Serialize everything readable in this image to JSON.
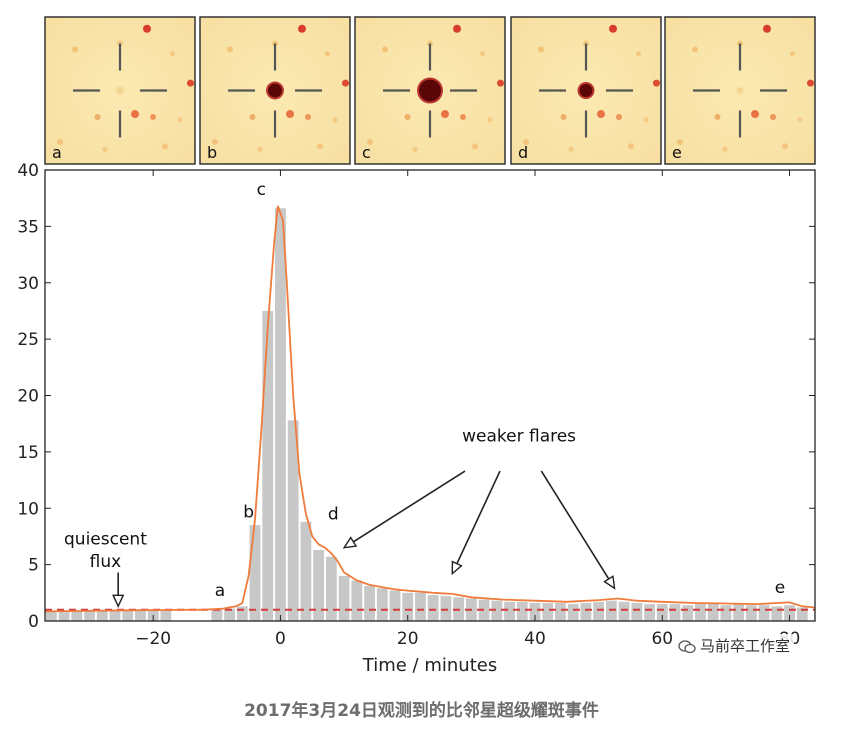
{
  "caption": "2017年3月24日观测到的比邻星超级耀斑事件",
  "watermark": "马前卒工作室",
  "panels": [
    {
      "label": "a",
      "brightness": 0.15
    },
    {
      "label": "b",
      "brightness": 0.55
    },
    {
      "label": "c",
      "brightness": 1.0
    },
    {
      "label": "d",
      "brightness": 0.5
    },
    {
      "label": "e",
      "brightness": 0.12
    }
  ],
  "chart_data": {
    "type": "bar",
    "title": "",
    "xlabel": "Time / minutes",
    "ylabel": "",
    "xlim": [
      -37,
      84
    ],
    "ylim": [
      0,
      40
    ],
    "xticks": [
      -20,
      0,
      20,
      40,
      60,
      80
    ],
    "xtick_labels": [
      "−20",
      "0",
      "20",
      "40",
      "60",
      "80"
    ],
    "yticks": [
      0,
      5,
      10,
      15,
      20,
      25,
      30,
      35,
      40
    ],
    "grid": false,
    "quiescent_level": 1.0,
    "bars": [
      {
        "x": -36,
        "v": 0.9
      },
      {
        "x": -34,
        "v": 0.9
      },
      {
        "x": -32,
        "v": 0.9
      },
      {
        "x": -30,
        "v": 1.0
      },
      {
        "x": -28,
        "v": 0.9
      },
      {
        "x": -26,
        "v": 1.0
      },
      {
        "x": -24,
        "v": 0.9
      },
      {
        "x": -22,
        "v": 1.0
      },
      {
        "x": -20,
        "v": 1.0
      },
      {
        "x": -18,
        "v": 0.9
      },
      {
        "x": -10,
        "v": 1.0
      },
      {
        "x": -8,
        "v": 1.1
      },
      {
        "x": -6,
        "v": 1.3
      },
      {
        "x": -4,
        "v": 8.5
      },
      {
        "x": -2,
        "v": 27.5
      },
      {
        "x": 0,
        "v": 36.6
      },
      {
        "x": 2,
        "v": 17.8
      },
      {
        "x": 4,
        "v": 8.8
      },
      {
        "x": 6,
        "v": 6.3
      },
      {
        "x": 8,
        "v": 5.7
      },
      {
        "x": 10,
        "v": 4.0
      },
      {
        "x": 12,
        "v": 3.6
      },
      {
        "x": 14,
        "v": 3.1
      },
      {
        "x": 16,
        "v": 2.9
      },
      {
        "x": 18,
        "v": 2.7
      },
      {
        "x": 20,
        "v": 2.5
      },
      {
        "x": 22,
        "v": 2.5
      },
      {
        "x": 24,
        "v": 2.3
      },
      {
        "x": 26,
        "v": 2.2
      },
      {
        "x": 28,
        "v": 2.1
      },
      {
        "x": 30,
        "v": 2.0
      },
      {
        "x": 32,
        "v": 1.9
      },
      {
        "x": 34,
        "v": 1.8
      },
      {
        "x": 36,
        "v": 1.7
      },
      {
        "x": 38,
        "v": 1.7
      },
      {
        "x": 40,
        "v": 1.6
      },
      {
        "x": 42,
        "v": 1.6
      },
      {
        "x": 44,
        "v": 1.6
      },
      {
        "x": 46,
        "v": 1.5
      },
      {
        "x": 48,
        "v": 1.6
      },
      {
        "x": 50,
        "v": 1.7
      },
      {
        "x": 52,
        "v": 1.8
      },
      {
        "x": 54,
        "v": 1.7
      },
      {
        "x": 56,
        "v": 1.6
      },
      {
        "x": 58,
        "v": 1.5
      },
      {
        "x": 60,
        "v": 1.5
      },
      {
        "x": 62,
        "v": 1.5
      },
      {
        "x": 64,
        "v": 1.4
      },
      {
        "x": 66,
        "v": 1.5
      },
      {
        "x": 68,
        "v": 1.5
      },
      {
        "x": 70,
        "v": 1.4
      },
      {
        "x": 72,
        "v": 1.5
      },
      {
        "x": 74,
        "v": 1.4
      },
      {
        "x": 76,
        "v": 1.4
      },
      {
        "x": 78,
        "v": 1.3
      },
      {
        "x": 80,
        "v": 1.4
      },
      {
        "x": 82,
        "v": 1.2
      }
    ],
    "bar_width": 1.7,
    "model_curve": [
      [
        -37,
        0.85
      ],
      [
        -30,
        0.9
      ],
      [
        -24,
        0.95
      ],
      [
        -18,
        0.98
      ],
      [
        -12,
        1.0
      ],
      [
        -9,
        1.1
      ],
      [
        -7,
        1.3
      ],
      [
        -6,
        1.6
      ],
      [
        -5,
        4.0
      ],
      [
        -4,
        9.0
      ],
      [
        -3,
        17.0
      ],
      [
        -2,
        26.0
      ],
      [
        -1,
        33.5
      ],
      [
        -0.4,
        36.8
      ],
      [
        0.4,
        35.5
      ],
      [
        1,
        30.0
      ],
      [
        2,
        20.0
      ],
      [
        3,
        13.0
      ],
      [
        4,
        9.5
      ],
      [
        5,
        7.5
      ],
      [
        6,
        6.8
      ],
      [
        7,
        6.5
      ],
      [
        8,
        6.0
      ],
      [
        9,
        5.3
      ],
      [
        10,
        4.3
      ],
      [
        12,
        3.6
      ],
      [
        14,
        3.2
      ],
      [
        16,
        3.0
      ],
      [
        18,
        2.8
      ],
      [
        20,
        2.7
      ],
      [
        22,
        2.6
      ],
      [
        24,
        2.5
      ],
      [
        27,
        2.4
      ],
      [
        30,
        2.1
      ],
      [
        35,
        1.9
      ],
      [
        40,
        1.8
      ],
      [
        45,
        1.7
      ],
      [
        50,
        1.85
      ],
      [
        53,
        2.0
      ],
      [
        56,
        1.8
      ],
      [
        60,
        1.7
      ],
      [
        65,
        1.6
      ],
      [
        70,
        1.55
      ],
      [
        75,
        1.5
      ],
      [
        78,
        1.6
      ],
      [
        80,
        1.65
      ],
      [
        82,
        1.3
      ],
      [
        84,
        1.2
      ]
    ],
    "annotations": [
      {
        "text": "quiescent",
        "x": -27.5,
        "y": 6.8,
        "line": 1
      },
      {
        "text": "flux",
        "x": -27.5,
        "y": 4.8,
        "line": 2
      },
      {
        "text": "weaker flares",
        "x": 37.5,
        "y": 15.9
      },
      {
        "text": "a",
        "x": -9.5,
        "y": 2.2
      },
      {
        "text": "b",
        "x": -5,
        "y": 9.2
      },
      {
        "text": "c",
        "x": -3,
        "y": 37.8
      },
      {
        "text": "d",
        "x": 8.3,
        "y": 9.0
      },
      {
        "text": "e",
        "x": 78.5,
        "y": 2.5
      }
    ],
    "arrows": [
      {
        "from": [
          -25.5,
          4.3
        ],
        "to": [
          -25.5,
          1.3
        ]
      },
      {
        "from": [
          29,
          13.3
        ],
        "to": [
          10,
          6.5
        ]
      },
      {
        "from": [
          34.5,
          13.3
        ],
        "to": [
          27,
          4.2
        ]
      },
      {
        "from": [
          41,
          13.3
        ],
        "to": [
          52.5,
          2.9
        ]
      }
    ],
    "colors": {
      "bars": "#c8c8c8",
      "curve": "#f07b3c",
      "quiescent": "#d23c3c",
      "arrows": "#222222"
    }
  }
}
